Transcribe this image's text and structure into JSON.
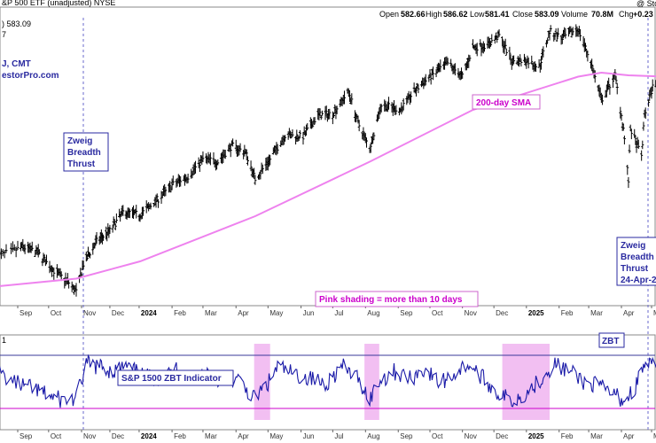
{
  "header": {
    "title": "&P 500 ETF (unadjusted) NYSE",
    "open_label": "Open",
    "open": "582.66",
    "high_label": "High",
    "high": "586.62",
    "low_label": "Low",
    "low": "581.41",
    "close_label": "Close",
    "close": "583.09",
    "volume_label": "Volume",
    "volume": "70.8M",
    "chg_label": "Chg",
    "chg": "+0.23",
    "watermark": "@ Stock",
    "price_label": ") 583.09",
    "left_digit": "7",
    "author_line1": "J, CMT",
    "author_line2": "estorPro.com",
    "lower_panel_num": "1"
  },
  "annotations": {
    "zbt1": [
      "Zweig",
      "Breadth",
      "Thrust"
    ],
    "zbt2": [
      "Zweig",
      "Breadth",
      "Thrust",
      "24-Apr-2"
    ],
    "sma": "200-day SMA",
    "shading": "Pink shading = more than 10 days",
    "indicator": "S&P 1500 ZBT Indicator",
    "zbt_small": "ZBT"
  },
  "colors": {
    "price_bars": "#000000",
    "sma": "#ee82ee",
    "indicator_line": "#1a1aa8",
    "upper_threshold": "#3a3a9a",
    "lower_threshold": "#cc00cc",
    "shading": "#f0b4f0",
    "signal_marker": "#6a6acc"
  },
  "chart_data": [
    {
      "type": "ohlc",
      "title": "&P 500 ETF (unadjusted) NYSE",
      "x_tick_labels": [
        "Sep",
        "Oct",
        "Nov",
        "Dec",
        "2024",
        "Feb",
        "Mar",
        "Apr",
        "May",
        "Jun",
        "Jul",
        "Aug",
        "Sep",
        "Oct",
        "Nov",
        "Dec",
        "2025",
        "Feb",
        "Mar",
        "Apr",
        "Ma"
      ],
      "dates": [
        "2023-08-18",
        "2023-09-05",
        "2023-09-20",
        "2023-10-06",
        "2023-10-20",
        "2023-10-27",
        "2023-11-03",
        "2023-11-17",
        "2023-12-01",
        "2023-12-15",
        "2024-01-02",
        "2024-01-19",
        "2024-02-02",
        "2024-02-16",
        "2024-03-01",
        "2024-03-15",
        "2024-03-28",
        "2024-04-10",
        "2024-04-19",
        "2024-05-03",
        "2024-05-17",
        "2024-06-03",
        "2024-06-17",
        "2024-07-01",
        "2024-07-16",
        "2024-07-25",
        "2024-08-05",
        "2024-08-16",
        "2024-09-03",
        "2024-09-16",
        "2024-10-01",
        "2024-10-18",
        "2024-11-01",
        "2024-11-11",
        "2024-11-25",
        "2024-12-06",
        "2024-12-18",
        "2025-01-02",
        "2025-01-13",
        "2025-01-23",
        "2025-02-04",
        "2025-02-19",
        "2025-03-03",
        "2025-03-13",
        "2025-03-26",
        "2025-04-03",
        "2025-04-08",
        "2025-04-10",
        "2025-04-21",
        "2025-04-24",
        "2025-05-02",
        "2025-05-13"
      ],
      "close": [
        438,
        446,
        442,
        428,
        419,
        412,
        433,
        450,
        458,
        472,
        470,
        482,
        493,
        499,
        512,
        510,
        522,
        517,
        497,
        512,
        530,
        529,
        545,
        546,
        563,
        539,
        520,
        553,
        549,
        563,
        574,
        584,
        574,
        596,
        598,
        605,
        586,
        586,
        581,
        608,
        603,
        610,
        585,
        556,
        575,
        535,
        496,
        535,
        514,
        545,
        566,
        583
      ],
      "sma200": {
        "dates": [
          "2023-08-18",
          "2023-10-27",
          "2024-01-02",
          "2024-04-19",
          "2024-08-05",
          "2024-11-11",
          "2025-02-19",
          "2025-03-13",
          "2025-04-08",
          "2025-05-13"
        ],
        "values": [
          416,
          422,
          435,
          469,
          510,
          549,
          574,
          577,
          575,
          574
        ]
      },
      "visible_value_labels": [
        "583.09"
      ]
    },
    {
      "type": "line",
      "title": "S&P 1500 ZBT Indicator",
      "series": [
        {
          "name": "S&P 1500 ZBT Indicator",
          "dates": [
            "2023-08-18",
            "2023-09-01",
            "2023-09-15",
            "2023-10-02",
            "2023-10-16",
            "2023-10-27",
            "2023-11-06",
            "2023-11-20",
            "2023-12-04",
            "2023-12-18",
            "2024-01-05",
            "2024-01-22",
            "2024-02-06",
            "2024-02-20",
            "2024-03-05",
            "2024-03-19",
            "2024-04-02",
            "2024-04-18",
            "2024-05-01",
            "2024-05-10",
            "2024-05-24",
            "2024-06-10",
            "2024-06-24",
            "2024-07-10",
            "2024-07-25",
            "2024-08-05",
            "2024-08-14",
            "2024-08-28",
            "2024-09-12",
            "2024-09-26",
            "2024-10-10",
            "2024-10-24",
            "2024-11-07",
            "2024-11-21",
            "2024-12-05",
            "2024-12-19",
            "2025-01-03",
            "2025-01-15",
            "2025-01-27",
            "2025-02-10",
            "2025-02-24",
            "2025-03-10",
            "2025-03-24",
            "2025-04-04",
            "2025-04-14",
            "2025-04-24",
            "2025-05-08",
            "2025-05-13"
          ],
          "values": [
            0.55,
            0.5,
            0.48,
            0.45,
            0.43,
            0.44,
            0.58,
            0.57,
            0.55,
            0.57,
            0.53,
            0.52,
            0.56,
            0.52,
            0.55,
            0.51,
            0.52,
            0.44,
            0.5,
            0.57,
            0.54,
            0.52,
            0.5,
            0.57,
            0.52,
            0.44,
            0.51,
            0.55,
            0.52,
            0.56,
            0.5,
            0.54,
            0.58,
            0.52,
            0.46,
            0.43,
            0.47,
            0.52,
            0.58,
            0.55,
            0.51,
            0.49,
            0.46,
            0.43,
            0.48,
            0.58,
            0.56,
            0.57
          ]
        }
      ],
      "thresholds": [
        0.4,
        0.615
      ],
      "shaded_ranges": [
        [
          "2024-04-18",
          "2024-05-03"
        ],
        [
          "2024-07-31",
          "2024-08-14"
        ],
        [
          "2024-12-09",
          "2025-01-23"
        ]
      ],
      "x_tick_labels": [
        "Sep",
        "Oct",
        "Nov",
        "Dec",
        "2024",
        "Feb",
        "Mar",
        "Apr",
        "May",
        "Jun",
        "Jul",
        "Aug",
        "Sep",
        "Oct",
        "Nov",
        "Dec",
        "2025",
        "Feb",
        "Mar",
        "Apr",
        "Ma"
      ]
    }
  ]
}
